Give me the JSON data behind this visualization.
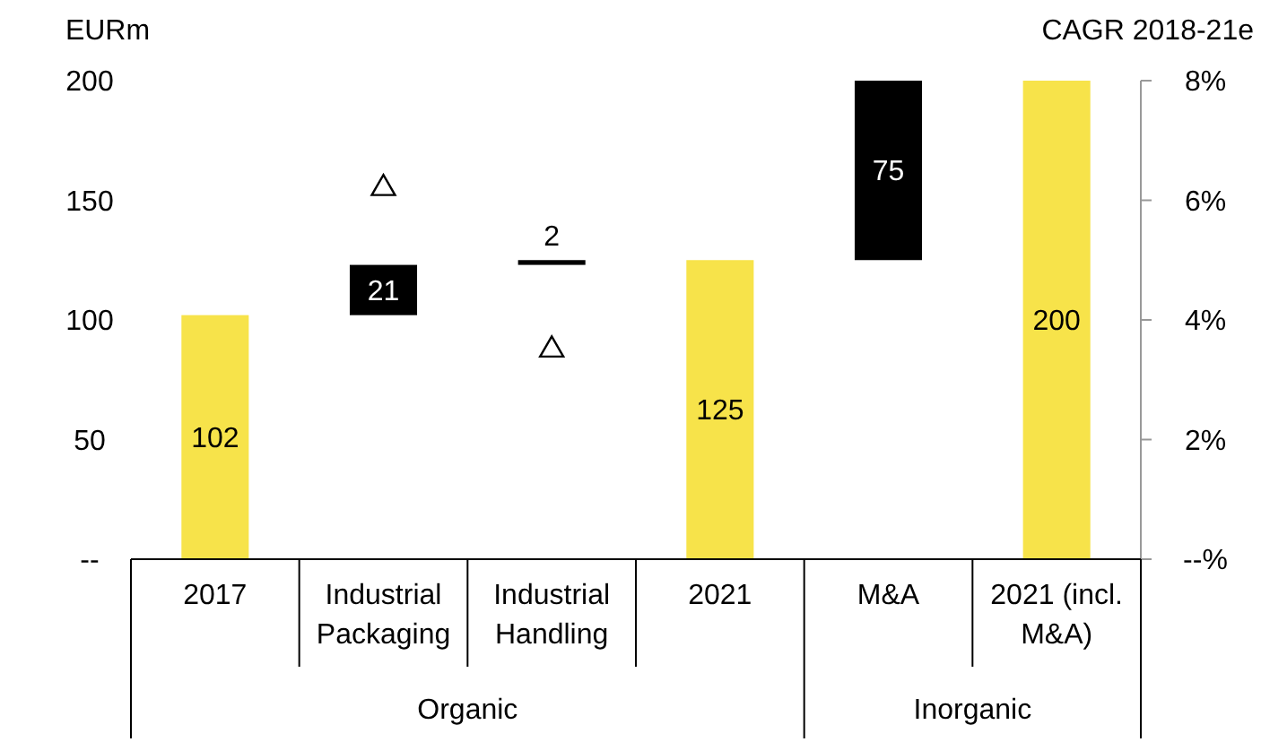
{
  "chart_data": {
    "type": "bar",
    "ylabel": "EURm",
    "y2label": "CAGR 2018-21e",
    "categories": [
      "2017",
      "Industrial Packaging",
      "Industrial Handling",
      "2021",
      "M&A",
      "2021 (incl. M&A)"
    ],
    "series": [
      {
        "values": [
          102,
          21,
          2,
          125,
          75,
          200
        ],
        "value_labels": [
          "102",
          "21",
          "2",
          "125",
          "75",
          "200"
        ],
        "base": [
          0,
          102,
          123,
          0,
          125,
          0
        ],
        "colors": [
          "#f7e34a",
          "#000000",
          "#000000",
          "#f7e34a",
          "#000000",
          "#f7e34a"
        ]
      },
      {
        "type": "scatter",
        "axis": "y2",
        "x": [
          "Industrial Packaging",
          "Industrial Handling"
        ],
        "values": [
          6.2,
          3.5
        ],
        "color": "#000000",
        "marker": "triangle"
      }
    ],
    "ylim": [
      0,
      200
    ],
    "yticks": [
      {
        "value": 0,
        "label": "--"
      },
      50,
      100,
      150,
      200
    ],
    "y2lim": [
      0,
      8
    ],
    "y2ticks": [
      {
        "value": 0,
        "label": "--%"
      },
      {
        "value": 2,
        "label": "2%"
      },
      {
        "value": 4,
        "label": "4%"
      },
      {
        "value": 6,
        "label": "6%"
      },
      {
        "value": 8,
        "label": "8%"
      }
    ],
    "annotations": [
      "Organic",
      "Inorganic"
    ]
  }
}
